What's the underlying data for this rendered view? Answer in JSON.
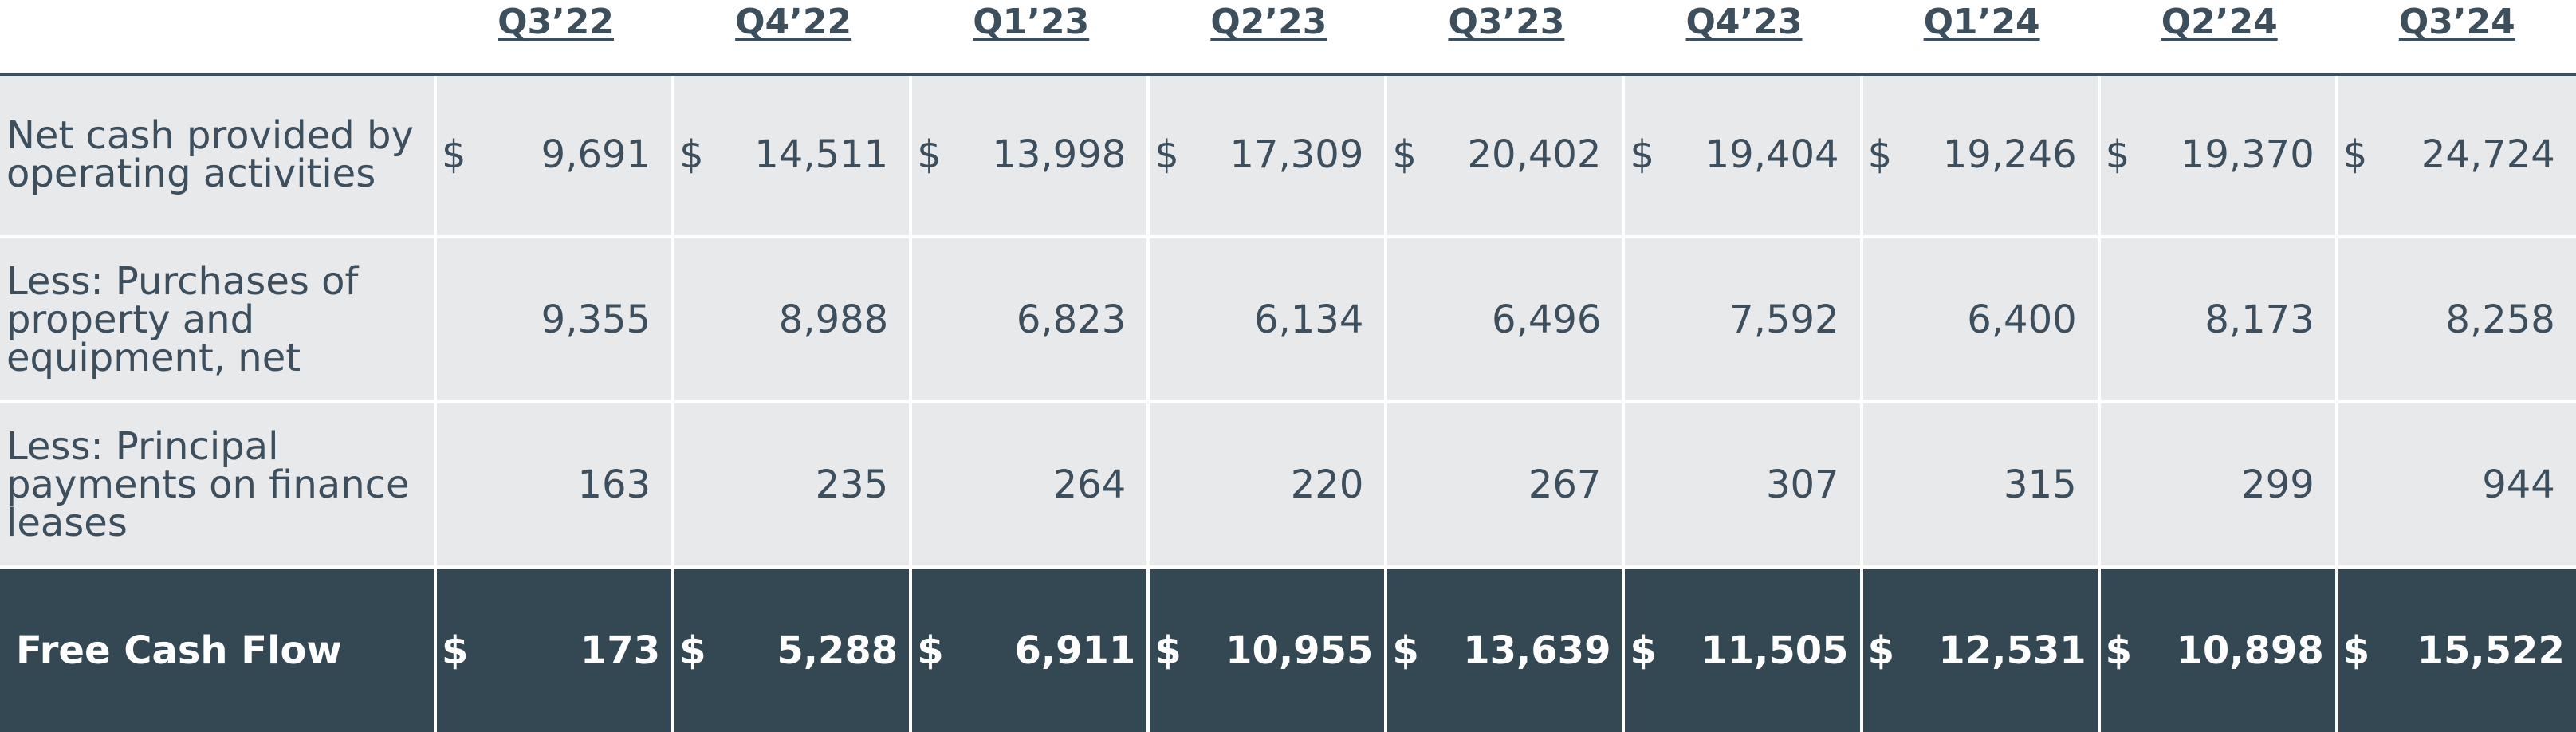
{
  "columns": [
    "Q3’22",
    "Q4’22",
    "Q1’23",
    "Q2’23",
    "Q3’23",
    "Q4’23",
    "Q1’24",
    "Q2’24",
    "Q3’24"
  ],
  "currency_symbol": "$",
  "rows": [
    {
      "label_lines": [
        "Net cash provided by",
        "operating activities"
      ],
      "show_dollar": true,
      "values": [
        "9,691",
        "14,511",
        "13,998",
        "17,309",
        "20,402",
        "19,404",
        "19,246",
        "19,370",
        "24,724"
      ]
    },
    {
      "label_lines": [
        "Less: Purchases of",
        "property and",
        "equipment, net"
      ],
      "show_dollar": false,
      "values": [
        "9,355",
        "8,988",
        "6,823",
        "6,134",
        "6,496",
        "7,592",
        "6,400",
        "8,173",
        "8,258"
      ]
    },
    {
      "label_lines": [
        "Less: Principal",
        "payments on finance",
        "leases"
      ],
      "show_dollar": false,
      "values": [
        "163",
        "235",
        "264",
        "220",
        "267",
        "307",
        "315",
        "299",
        "944"
      ]
    }
  ],
  "total": {
    "label": "Free Cash Flow",
    "values": [
      "173",
      "5,288",
      "6,911",
      "10,955",
      "13,639",
      "11,505",
      "12,531",
      "10,898",
      "15,522"
    ]
  }
}
